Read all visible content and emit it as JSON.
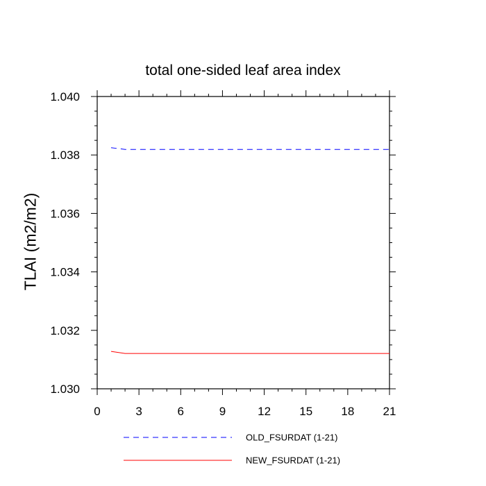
{
  "chart_data": {
    "type": "line",
    "title": "total one-sided leaf area index",
    "ylabel": "TLAI  (m2/m2)",
    "xlabel": "",
    "xlim": [
      0,
      21
    ],
    "ylim": [
      1.03,
      1.04
    ],
    "x_ticks": [
      0,
      3,
      6,
      9,
      12,
      15,
      18,
      21
    ],
    "y_ticks": [
      "1.030",
      "1.032",
      "1.034",
      "1.036",
      "1.038",
      "1.040"
    ],
    "x": [
      1,
      2,
      3,
      4,
      5,
      6,
      7,
      8,
      9,
      10,
      11,
      12,
      13,
      14,
      15,
      16,
      17,
      18,
      19,
      20,
      21
    ],
    "series": [
      {
        "name": "OLD_FSURDAT (1-21)",
        "color": "#0000ff",
        "dash": "dashed",
        "values": [
          1.03825,
          1.03819,
          1.03819,
          1.03819,
          1.03819,
          1.03819,
          1.03819,
          1.03819,
          1.03819,
          1.03819,
          1.03819,
          1.03819,
          1.03819,
          1.03819,
          1.03819,
          1.03819,
          1.03819,
          1.03819,
          1.03819,
          1.03819,
          1.03819
        ]
      },
      {
        "name": "NEW_FSURDAT (1-21)",
        "color": "#ff0000",
        "dash": "solid",
        "values": [
          1.03128,
          1.03121,
          1.03121,
          1.03121,
          1.03121,
          1.03121,
          1.03121,
          1.03121,
          1.03121,
          1.03121,
          1.03121,
          1.03121,
          1.03121,
          1.03121,
          1.03121,
          1.03121,
          1.03121,
          1.03121,
          1.03121,
          1.03121,
          1.03121
        ]
      }
    ],
    "legend_position": "bottom",
    "grid": false
  }
}
